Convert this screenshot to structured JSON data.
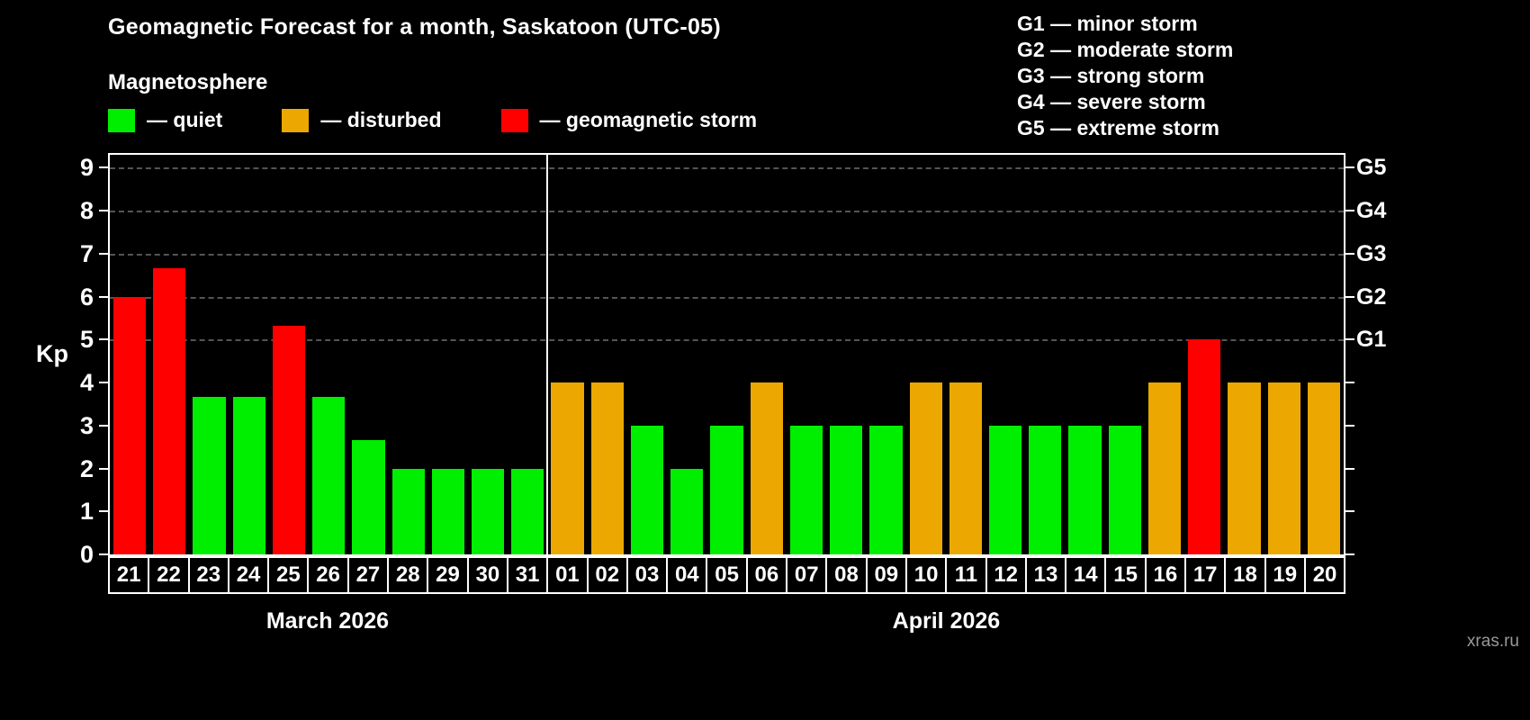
{
  "title": "Geomagnetic Forecast for a month, Saskatoon (UTC-05)",
  "subtitle": "Magnetosphere",
  "legend": [
    {
      "key": "quiet",
      "label": "— quiet"
    },
    {
      "key": "disturbed",
      "label": "— disturbed"
    },
    {
      "key": "storm",
      "label": "— geomagnetic storm"
    }
  ],
  "g_legend": [
    "G1 — minor storm",
    "G2 — moderate storm",
    "G3 — strong storm",
    "G4 — severe storm",
    "G5 — extreme storm"
  ],
  "watermark": "xras.ru",
  "colors": {
    "quiet": "#00ee00",
    "disturbed": "#eca800",
    "storm": "#ff0000",
    "grid": "#555555"
  },
  "chart_data": {
    "type": "bar",
    "title": "Geomagnetic Forecast for a month, Saskatoon (UTC-05)",
    "ylabel": "Kp",
    "ymax": 9.3,
    "yticks": [
      0,
      1,
      2,
      3,
      4,
      5,
      6,
      7,
      8,
      9
    ],
    "grid_kp": [
      5,
      6,
      7,
      8,
      9
    ],
    "right_axis": [
      {
        "label": "G5",
        "kp": 9
      },
      {
        "label": "G4",
        "kp": 8
      },
      {
        "label": "G3",
        "kp": 7
      },
      {
        "label": "G2",
        "kp": 6
      },
      {
        "label": "G1",
        "kp": 5
      }
    ],
    "months": [
      {
        "label": "March 2026",
        "days": 11
      },
      {
        "label": "April 2026",
        "days": 20
      }
    ],
    "categories": [
      "21",
      "22",
      "23",
      "24",
      "25",
      "26",
      "27",
      "28",
      "29",
      "30",
      "31",
      "01",
      "02",
      "03",
      "04",
      "05",
      "06",
      "07",
      "08",
      "09",
      "10",
      "11",
      "12",
      "13",
      "14",
      "15",
      "16",
      "17",
      "18",
      "19",
      "20"
    ],
    "values": [
      6,
      6.67,
      3.67,
      3.67,
      5.33,
      3.67,
      2.67,
      2,
      2,
      2,
      2,
      4,
      4,
      3,
      2,
      3,
      4,
      3,
      3,
      3,
      4,
      4,
      3,
      3,
      3,
      3,
      4,
      5,
      4,
      4,
      4
    ],
    "statuses": [
      "storm",
      "storm",
      "quiet",
      "quiet",
      "storm",
      "quiet",
      "quiet",
      "quiet",
      "quiet",
      "quiet",
      "quiet",
      "disturbed",
      "disturbed",
      "quiet",
      "quiet",
      "quiet",
      "disturbed",
      "quiet",
      "quiet",
      "quiet",
      "disturbed",
      "disturbed",
      "quiet",
      "quiet",
      "quiet",
      "quiet",
      "disturbed",
      "storm",
      "disturbed",
      "disturbed",
      "disturbed"
    ]
  }
}
